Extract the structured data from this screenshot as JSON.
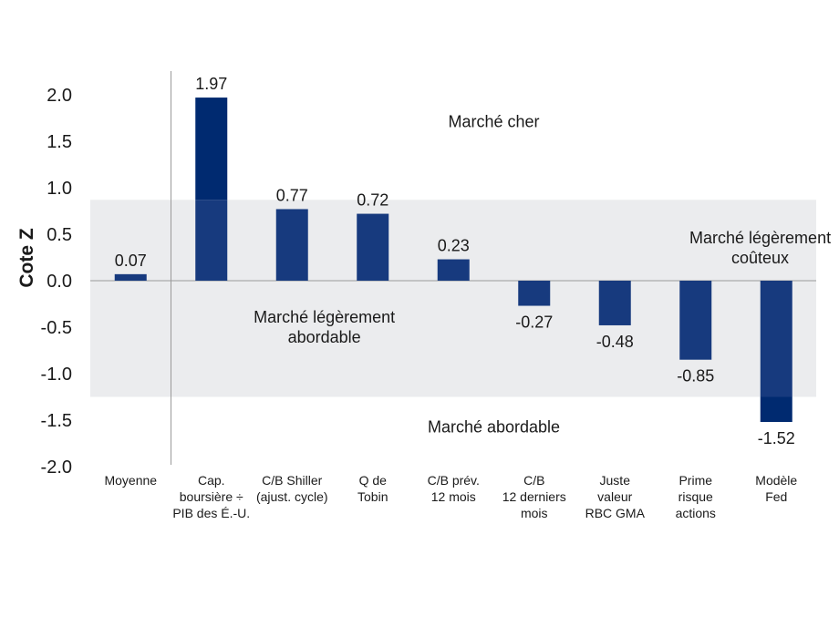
{
  "chart_data": {
    "type": "bar",
    "ylabel": "Cote Z",
    "ylim": [
      -2.0,
      2.0
    ],
    "yticks": [
      "2.0",
      "1.5",
      "1.0",
      "0.5",
      "0.0",
      "-0.5",
      "-1.0",
      "-1.5",
      "-2.0"
    ],
    "band": [
      -1.25,
      0.87
    ],
    "bar_color": "#173a7e",
    "bar_color_outside": "#002a70",
    "band_color": "#ebecee",
    "categories": [
      [
        "Moyenne"
      ],
      [
        "Cap.",
        "boursière ÷",
        "PIB des É.-U."
      ],
      [
        "C/B Shiller",
        "(ajust. cycle)"
      ],
      [
        "Q de",
        "Tobin"
      ],
      [
        "C/B prév.",
        "12 mois"
      ],
      [
        "C/B",
        "12 derniers",
        "mois"
      ],
      [
        "Juste",
        "valeur",
        "RBC GMA"
      ],
      [
        "Prime",
        "risque",
        "actions"
      ],
      [
        "Modèle",
        "Fed"
      ]
    ],
    "values": [
      0.07,
      1.97,
      0.77,
      0.72,
      0.23,
      -0.27,
      -0.48,
      -0.85,
      -1.52
    ],
    "labels": [
      "0.07",
      "1.97",
      "0.77",
      "0.72",
      "0.23",
      "-0.27",
      "-0.48",
      "-0.85",
      "-1.52"
    ],
    "annotations": [
      {
        "lines": [
          "Marché cher"
        ],
        "x": 4.5,
        "y": 1.65
      },
      {
        "lines": [
          "Marché légèrement",
          "coûteux"
        ],
        "x": 7.8,
        "y": 0.4
      },
      {
        "lines": [
          "Marché légèrement",
          "abordable"
        ],
        "x": 2.4,
        "y": -0.45
      },
      {
        "lines": [
          "Marché abordable"
        ],
        "x": 4.5,
        "y": -1.63
      }
    ]
  }
}
